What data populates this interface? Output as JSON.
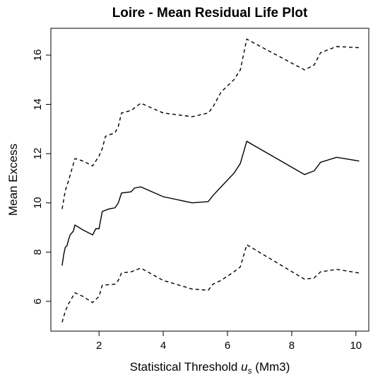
{
  "chart_data": {
    "type": "line",
    "title": "Loire - Mean Residual Life Plot",
    "x_label": {
      "text": "Statistical Threshold ",
      "var": "u",
      "sub": "s",
      "unit": " (Mm3)"
    },
    "y_label": "Mean Excess",
    "xlim": [
      0.5,
      10.4
    ],
    "xticks": [
      2,
      4,
      6,
      8,
      10
    ],
    "ylim": [
      4.79,
      17.09
    ],
    "yticks": [
      6,
      8,
      10,
      12,
      14,
      16
    ],
    "series": [
      {
        "color": "#000000",
        "linestyle": "solid",
        "x": [
          0.85,
          0.9,
          0.95,
          1.0,
          1.05,
          1.1,
          1.2,
          1.25,
          1.5,
          1.8,
          1.9,
          2.0,
          2.05,
          2.1,
          2.3,
          2.5,
          2.6,
          2.7,
          3.0,
          3.1,
          3.3,
          4.0,
          4.9,
          5.4,
          5.55,
          5.8,
          6.2,
          6.4,
          6.6,
          8.4,
          8.7,
          8.9,
          9.4,
          10.1
        ],
        "values": [
          7.45,
          7.9,
          8.2,
          8.25,
          8.5,
          8.7,
          8.85,
          9.1,
          8.9,
          8.7,
          8.95,
          8.95,
          9.3,
          9.65,
          9.75,
          9.8,
          10.0,
          10.4,
          10.45,
          10.6,
          10.65,
          10.25,
          10.0,
          10.05,
          10.3,
          10.65,
          11.2,
          11.6,
          12.5,
          11.15,
          11.3,
          11.65,
          11.85,
          11.7
        ]
      },
      {
        "color": "#000000",
        "linestyle": "dashed",
        "x": [
          0.85,
          0.95,
          1.05,
          1.25,
          1.5,
          1.8,
          2.0,
          2.1,
          2.2,
          2.5,
          2.6,
          2.7,
          3.0,
          3.3,
          4.0,
          4.9,
          5.4,
          5.55,
          5.8,
          6.2,
          6.4,
          6.6,
          8.4,
          8.7,
          8.9,
          9.4,
          10.1
        ],
        "values": [
          9.75,
          10.5,
          10.9,
          11.8,
          11.7,
          11.5,
          11.9,
          12.2,
          12.7,
          12.85,
          13.1,
          13.65,
          13.75,
          14.05,
          13.65,
          13.5,
          13.65,
          13.9,
          14.5,
          15.0,
          15.4,
          16.65,
          15.4,
          15.6,
          16.1,
          16.35,
          16.3
        ]
      },
      {
        "color": "#000000",
        "linestyle": "dashed",
        "x": [
          0.85,
          0.95,
          1.05,
          1.25,
          1.5,
          1.8,
          2.0,
          2.1,
          2.5,
          2.6,
          2.7,
          3.0,
          3.3,
          4.0,
          4.9,
          5.4,
          5.55,
          5.8,
          6.2,
          6.4,
          6.6,
          8.4,
          8.7,
          8.9,
          9.4,
          10.1
        ],
        "values": [
          5.15,
          5.6,
          5.9,
          6.35,
          6.2,
          5.95,
          6.2,
          6.65,
          6.7,
          6.85,
          7.15,
          7.2,
          7.35,
          6.85,
          6.5,
          6.45,
          6.7,
          6.85,
          7.2,
          7.4,
          8.3,
          6.9,
          6.95,
          7.2,
          7.3,
          7.15
        ]
      }
    ]
  }
}
